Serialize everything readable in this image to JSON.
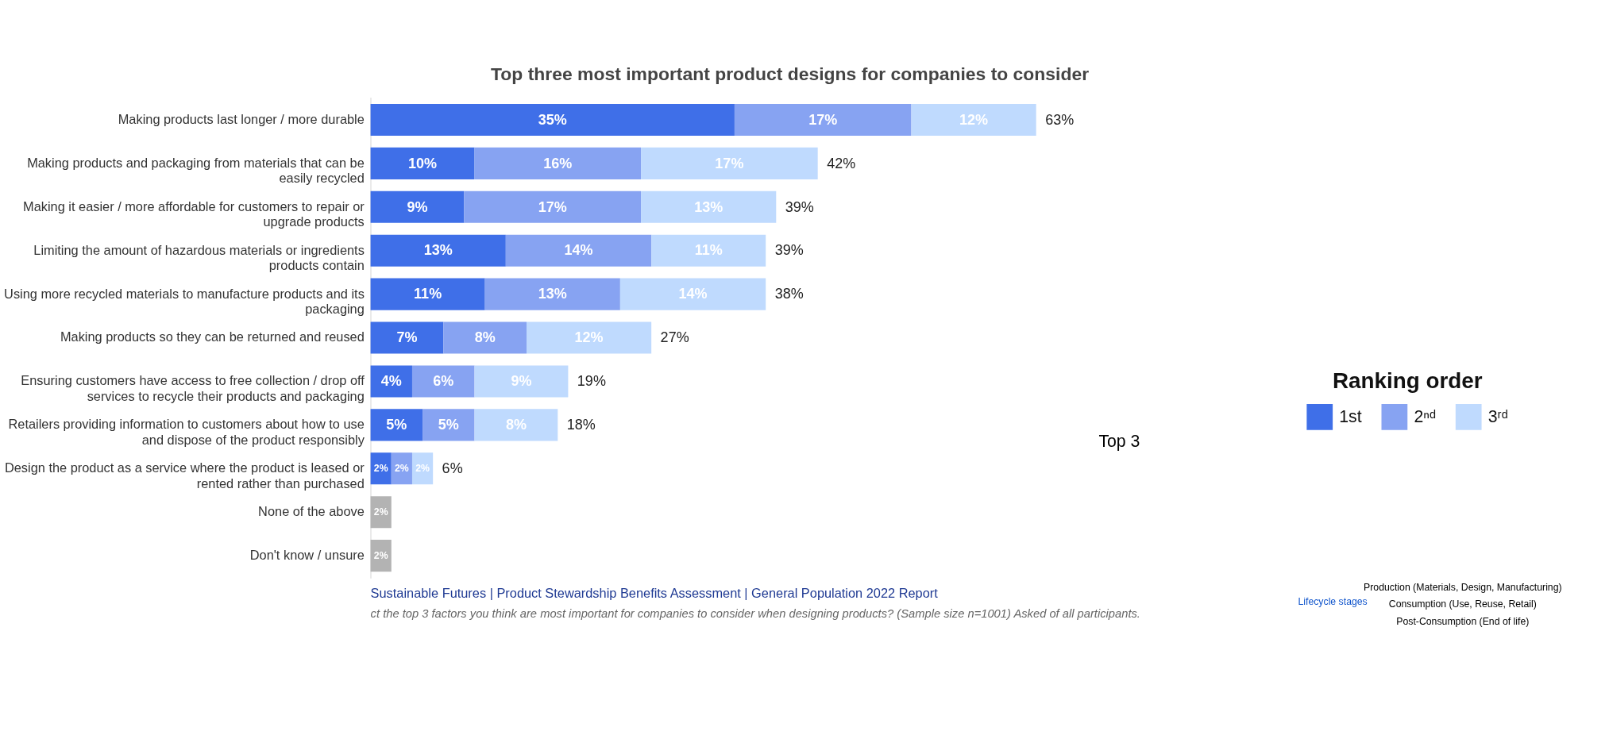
{
  "chart_data": {
    "type": "bar",
    "orientation": "horizontal",
    "stacked": true,
    "title": "Top three most important product designs for companies to consider",
    "categories": [
      "Making products last longer / more durable",
      "Making products and packaging from materials that can be easily recycled",
      "Making it easier / more affordable for customers to repair or upgrade products",
      "Limiting the amount of hazardous materials or ingredients products contain",
      "Using more recycled materials to manufacture products and its packaging",
      "Making products so they can be returned and reused",
      "Ensuring customers have access to free collection / drop off services to recycle their products and packaging",
      "Retailers providing information to customers about how to use and dispose of the product responsibly",
      "Design the product as a service where the product is leased or rented rather than purchased",
      "None of the above",
      "Don't know / unsure"
    ],
    "series": [
      {
        "name": "1st",
        "color": "#3f6fe8",
        "values": [
          35,
          10,
          9,
          13,
          11,
          7,
          4,
          5,
          2,
          null,
          null
        ],
        "value_labels": [
          "35%",
          "10%",
          "9%",
          "13%",
          "11%",
          "7%",
          "4%",
          "5%",
          "2%",
          null,
          null
        ]
      },
      {
        "name": "2ⁿᵈ",
        "color": "#87a3f2",
        "values": [
          17,
          16,
          17,
          14,
          13,
          8,
          6,
          5,
          2,
          null,
          null
        ],
        "value_labels": [
          "17%",
          "16%",
          "17%",
          "14%",
          "13%",
          "8%",
          "6%",
          "5%",
          "2%",
          null,
          null
        ]
      },
      {
        "name": "3ʳᵈ",
        "color": "#bfdafe",
        "values": [
          12,
          17,
          13,
          11,
          14,
          12,
          9,
          8,
          2,
          null,
          null
        ],
        "value_labels": [
          "12%",
          "17%",
          "13%",
          "11%",
          "14%",
          "12%",
          "9%",
          "8%",
          "2%",
          null,
          null
        ]
      },
      {
        "color": "#b3b3b3",
        "values": [
          null,
          null,
          null,
          null,
          null,
          null,
          null,
          null,
          null,
          2,
          2
        ],
        "value_labels": [
          null,
          null,
          null,
          null,
          null,
          null,
          null,
          null,
          null,
          "2%",
          "2%"
        ]
      }
    ],
    "totals": [
      "63%",
      "42%",
      "39%",
      "39%",
      "38%",
      "27%",
      "19%",
      "18%",
      "6%",
      null,
      null
    ],
    "legend": "right",
    "legend_title": "Ranking order",
    "grid": false,
    "annotations": [
      "Top 3",
      "Sustainable Futures | Product Stewardship Benefits Assessment | General Population 2022 Report",
      "ct the top 3 factors you think are most important for companies to consider when designing products? (Sample size n=1001) Asked of all participants.",
      "Lifecycle stages",
      "Production (Materials, Design, Manufacturing)",
      "Consumption (Use, Reuse, Retail)",
      "Post-Consumption (End of life)"
    ]
  }
}
